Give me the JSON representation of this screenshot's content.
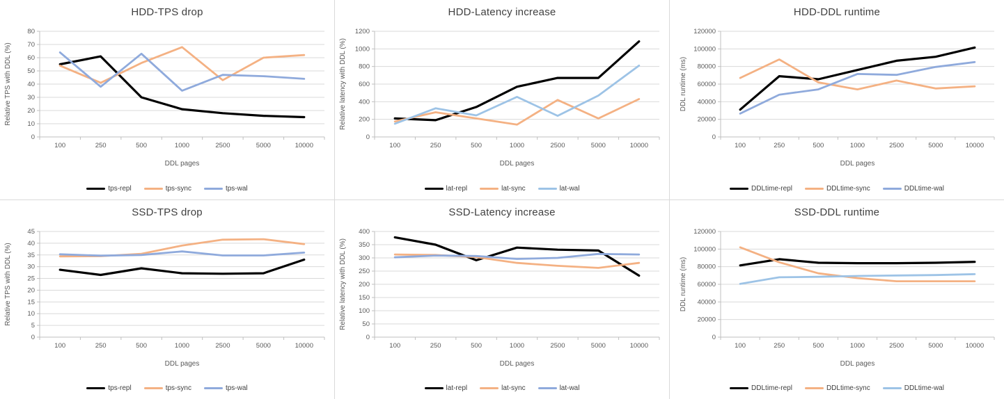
{
  "page": {
    "background_color": "#ffffff",
    "panel_border_color": "#d9d9d9",
    "gridline_color": "#d9d9d9",
    "axis_line_color": "#bfbfbf",
    "title_text_color": "#404040",
    "axis_text_color": "#595959"
  },
  "chart_data": [
    {
      "type": "line",
      "title": "HDD-TPS drop",
      "xlabel": "DDL pages",
      "ylabel": "Relative TPS with DDL (%)",
      "ylim": [
        0,
        80
      ],
      "ystep": 10,
      "grid": "horizontal",
      "legend_position": "bottom",
      "categories": [
        "100",
        "250",
        "500",
        "1000",
        "2500",
        "5000",
        "10000"
      ],
      "series": [
        {
          "name": "tps-repl",
          "color": "#000000",
          "values": [
            55,
            61,
            30,
            21,
            18,
            16,
            15
          ]
        },
        {
          "name": "tps-sync",
          "color": "#F4B183",
          "values": [
            54,
            41,
            56,
            68,
            43,
            60,
            62
          ]
        },
        {
          "name": "tps-wal",
          "color": "#8FAADC",
          "values": [
            64,
            38,
            63,
            35,
            47,
            46,
            44
          ]
        }
      ]
    },
    {
      "type": "line",
      "title": "HDD-Latency increase",
      "xlabel": "DDL pages",
      "ylabel": "Relative latency with DDL (%)",
      "ylim": [
        0,
        1200
      ],
      "ystep": 200,
      "grid": "horizontal",
      "legend_position": "bottom",
      "categories": [
        "100",
        "250",
        "500",
        "1000",
        "2500",
        "5000",
        "10000"
      ],
      "series": [
        {
          "name": "lat-repl",
          "color": "#000000",
          "values": [
            210,
            190,
            340,
            570,
            670,
            670,
            1085
          ]
        },
        {
          "name": "lat-sync",
          "color": "#F4B183",
          "values": [
            175,
            280,
            210,
            140,
            420,
            210,
            430
          ]
        },
        {
          "name": "lat-wal",
          "color": "#9DC3E6",
          "values": [
            150,
            325,
            245,
            455,
            240,
            470,
            810
          ]
        }
      ]
    },
    {
      "type": "line",
      "title": "HDD-DDL runtime",
      "xlabel": "DDL pages",
      "ylabel": "DDL runtime (ms)",
      "ylim": [
        0,
        120000
      ],
      "ystep": 20000,
      "grid": "horizontal",
      "legend_position": "bottom",
      "categories": [
        "100",
        "250",
        "500",
        "1000",
        "2500",
        "5000",
        "10000"
      ],
      "series": [
        {
          "name": "DDLtime-repl",
          "color": "#000000",
          "values": [
            31000,
            69000,
            65500,
            76000,
            86500,
            91000,
            101500
          ]
        },
        {
          "name": "DDLtime-sync",
          "color": "#F4B183",
          "values": [
            67000,
            88000,
            62000,
            54000,
            64000,
            55000,
            57500
          ]
        },
        {
          "name": "DDLtime-wal",
          "color": "#8FAADC",
          "values": [
            26500,
            48000,
            54000,
            71500,
            70500,
            79500,
            85000
          ]
        }
      ]
    },
    {
      "type": "line",
      "title": "SSD-TPS drop",
      "xlabel": "DDL pages",
      "ylabel": "Relative TPS with DDL (%)",
      "ylim": [
        0,
        45
      ],
      "ystep": 5,
      "grid": "horizontal",
      "legend_position": "bottom",
      "categories": [
        "100",
        "250",
        "500",
        "1000",
        "2500",
        "5000",
        "10000"
      ],
      "series": [
        {
          "name": "tps-repl",
          "color": "#000000",
          "values": [
            28.7,
            26.5,
            29.3,
            27.2,
            27,
            27.2,
            33
          ]
        },
        {
          "name": "tps-sync",
          "color": "#F4B183",
          "values": [
            34.4,
            34.5,
            35.5,
            39,
            41.5,
            41.7,
            39.6
          ]
        },
        {
          "name": "tps-wal",
          "color": "#8FAADC",
          "values": [
            35.3,
            34.7,
            35,
            36.5,
            34.8,
            34.8,
            36
          ]
        }
      ]
    },
    {
      "type": "line",
      "title": "SSD-Latency increase",
      "xlabel": "DDL pages",
      "ylabel": "Relative latency with DDL (%)",
      "ylim": [
        0,
        400
      ],
      "ystep": 50,
      "grid": "horizontal",
      "legend_position": "bottom",
      "categories": [
        "100",
        "250",
        "500",
        "1000",
        "2500",
        "5000",
        "10000"
      ],
      "series": [
        {
          "name": "lat-repl",
          "color": "#000000",
          "values": [
            378,
            350,
            291,
            339,
            331,
            328,
            233
          ]
        },
        {
          "name": "lat-sync",
          "color": "#F4B183",
          "values": [
            313,
            311,
            303,
            281,
            270,
            262,
            281
          ]
        },
        {
          "name": "lat-wal",
          "color": "#8FAADC",
          "values": [
            302,
            309,
            307,
            296,
            300,
            315,
            313
          ]
        }
      ]
    },
    {
      "type": "line",
      "title": "SSD-DDL runtime",
      "xlabel": "DDL pages",
      "ylabel": "DDL runtime (ms)",
      "ylim": [
        0,
        120000
      ],
      "ystep": 20000,
      "grid": "horizontal",
      "legend_position": "bottom",
      "categories": [
        "100",
        "250",
        "500",
        "1000",
        "2500",
        "5000",
        "10000"
      ],
      "series": [
        {
          "name": "DDLtime-repl",
          "color": "#000000",
          "values": [
            81500,
            88500,
            84500,
            84000,
            84000,
            84500,
            85500
          ]
        },
        {
          "name": "DDLtime-sync",
          "color": "#F4B183",
          "values": [
            102000,
            85000,
            72500,
            67000,
            63500,
            63500,
            63500
          ]
        },
        {
          "name": "DDLtime-wal",
          "color": "#9DC3E6",
          "values": [
            60500,
            68000,
            68500,
            69500,
            70000,
            70500,
            71500
          ]
        }
      ]
    }
  ]
}
